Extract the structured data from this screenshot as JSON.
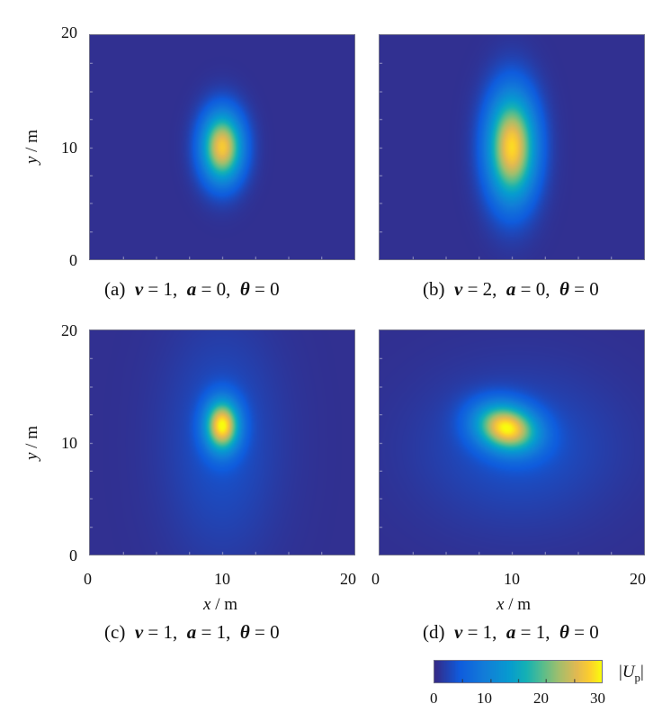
{
  "figure": {
    "colorbar": {
      "label": "|Up|",
      "ticks": [
        "0",
        "10",
        "20",
        "30"
      ],
      "range": [
        0,
        30
      ],
      "colormap": "parula"
    },
    "panels": [
      {
        "caption": "(a)  v = 1,  a = 0,  θ = 0",
        "caption_parts": {
          "tag": "(a)",
          "v": "1",
          "a": "0",
          "theta": "0"
        },
        "ylabel": "y / m",
        "xlabel": "",
        "yticks": [
          "20",
          "10",
          "0"
        ],
        "xticks": []
      },
      {
        "caption": "(b)  v = 2,  a = 0,  θ = 0",
        "caption_parts": {
          "tag": "(b)",
          "v": "2",
          "a": "0",
          "theta": "0"
        },
        "ylabel": "",
        "xlabel": "",
        "yticks": [],
        "xticks": []
      },
      {
        "caption": "(c)  v = 1,  a = 1,  θ = 0",
        "caption_parts": {
          "tag": "(c)",
          "v": "1",
          "a": "1",
          "theta": "0"
        },
        "ylabel": "y / m",
        "xlabel": "x / m",
        "yticks": [
          "20",
          "10",
          "0"
        ],
        "xticks": [
          "0",
          "10",
          "20"
        ]
      },
      {
        "caption": "(d)  v = 1,  a = 1,  θ = 0",
        "caption_parts": {
          "tag": "(d)",
          "v": "1",
          "a": "1",
          "theta": "0"
        },
        "ylabel": "",
        "xlabel": "x / m",
        "yticks": [],
        "xticks": [
          "0",
          "10",
          "20"
        ]
      }
    ]
  },
  "chart_data": [
    {
      "type": "heatmap",
      "title": "(a)  v = 1,  a = 0,  θ = 0",
      "xlabel": "",
      "ylabel": "y / m",
      "xlim": [
        0,
        20
      ],
      "ylim": [
        0,
        20
      ],
      "zlim": [
        0,
        30
      ],
      "background": 0.5,
      "peak": {
        "x": 10,
        "y": 10,
        "value": 27
      },
      "spread": {
        "sx": 1.1,
        "sy": 2.2,
        "rotation_deg": 0
      }
    },
    {
      "type": "heatmap",
      "title": "(b)  v = 2,  a = 0,  θ = 0",
      "xlabel": "",
      "ylabel": "",
      "xlim": [
        0,
        20
      ],
      "ylim": [
        0,
        20
      ],
      "zlim": [
        0,
        30
      ],
      "background": 0.5,
      "peak": {
        "x": 10,
        "y": 10,
        "value": 28
      },
      "spread": {
        "sx": 1.3,
        "sy": 3.4,
        "rotation_deg": 0
      }
    },
    {
      "type": "heatmap",
      "title": "(c)  v = 1,  a = 1,  θ = 0",
      "xlabel": "x / m",
      "ylabel": "y / m",
      "xlim": [
        0,
        20
      ],
      "ylim": [
        0,
        20
      ],
      "zlim": [
        0,
        30
      ],
      "background": 0.5,
      "peak": {
        "x": 10,
        "y": 11.5,
        "value": 27
      },
      "spread": {
        "sx": 0.9,
        "sy": 1.6,
        "rotation_deg": 0
      },
      "halo": {
        "x": 10,
        "y": 10,
        "value": 3,
        "sx": 3.0,
        "sy": 7.0
      }
    },
    {
      "type": "heatmap",
      "title": "(d)  v = 1,  a = 1,  θ = 0",
      "xlabel": "x / m",
      "ylabel": "",
      "xlim": [
        0,
        20
      ],
      "ylim": [
        0,
        20
      ],
      "zlim": [
        0,
        30
      ],
      "background": 0.5,
      "peak": {
        "x": 9.6,
        "y": 11.3,
        "value": 27
      },
      "spread": {
        "sx": 1.7,
        "sy": 1.4,
        "rotation_deg": -30
      },
      "halo": {
        "x": 10.5,
        "y": 9.5,
        "value": 3,
        "sx": 5.0,
        "sy": 4.5
      }
    }
  ]
}
